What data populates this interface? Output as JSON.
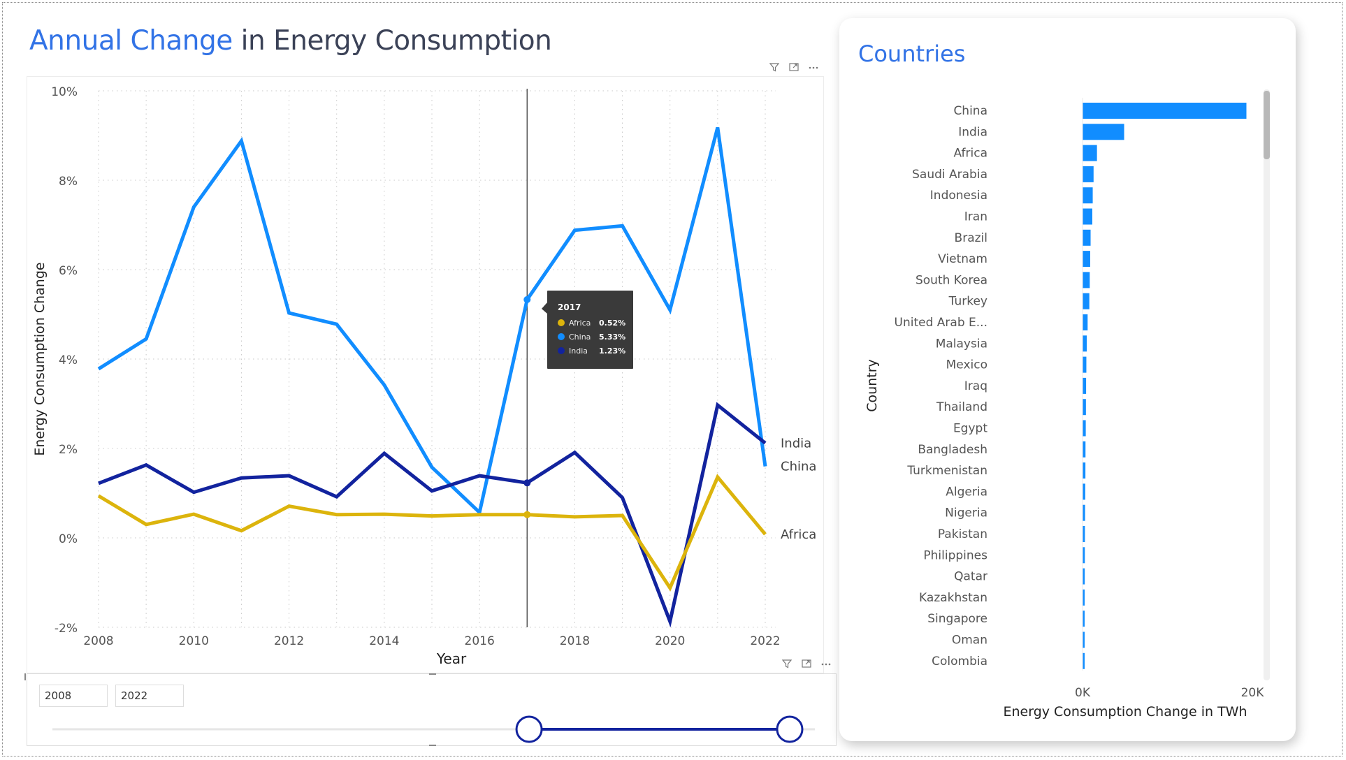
{
  "title": {
    "highlight": "Annual Change",
    "rest": " in Energy Consumption"
  },
  "colors": {
    "accent": "#3273e6",
    "africa": "#dcb40c",
    "china": "#118dff",
    "india": "#12239e",
    "bar": "#118dff",
    "slider": "#12239e"
  },
  "line_panel_icons": [
    "filter-icon",
    "focus-mode-icon",
    "more-options-icon"
  ],
  "slicer_icons": [
    "filter-icon",
    "focus-mode-icon",
    "more-options-icon"
  ],
  "tooltip": {
    "year": "2017",
    "rows": [
      {
        "label": "Africa",
        "value": "0.52%"
      },
      {
        "label": "China",
        "value": "5.33%"
      },
      {
        "label": "India",
        "value": "1.23%"
      }
    ]
  },
  "slicer": {
    "start": "2008",
    "end": "2022",
    "range_start_fraction": 0.66,
    "range_end_fraction": 1.0
  },
  "card": {
    "title": "Countries"
  },
  "chart_data": [
    {
      "type": "line",
      "xlabel": "Year",
      "ylabel": "Energy Consumption Change",
      "x": [
        2008,
        2009,
        2010,
        2011,
        2012,
        2013,
        2014,
        2015,
        2016,
        2017,
        2018,
        2019,
        2020,
        2021,
        2022
      ],
      "xticks": [
        "2008",
        "2010",
        "2012",
        "2014",
        "2016",
        "2018",
        "2020",
        "2022"
      ],
      "yticks": [
        "10%",
        "8%",
        "6%",
        "4%",
        "2%",
        "0%",
        "-2%"
      ],
      "ylim": [
        -2,
        10
      ],
      "grid": true,
      "hover_year": 2017,
      "series": [
        {
          "name": "China",
          "values": [
            3.78,
            4.45,
            7.4,
            8.88,
            5.03,
            4.78,
            3.42,
            1.58,
            0.57,
            5.33,
            6.88,
            6.98,
            5.1,
            9.18,
            1.6
          ]
        },
        {
          "name": "India",
          "values": [
            1.22,
            1.63,
            1.02,
            1.34,
            1.39,
            0.92,
            1.89,
            1.05,
            1.39,
            1.23,
            1.91,
            0.9,
            -1.87,
            2.97,
            2.12
          ]
        },
        {
          "name": "Africa",
          "values": [
            0.94,
            0.3,
            0.53,
            0.16,
            0.71,
            0.52,
            0.53,
            0.49,
            0.52,
            0.52,
            0.47,
            0.5,
            -1.12,
            1.36,
            0.08
          ]
        }
      ]
    },
    {
      "type": "bar",
      "orientation": "horizontal",
      "xlabel": "Energy Consumption Change in TWh",
      "ylabel": "Country",
      "xticks": [
        "0K",
        "20K"
      ],
      "xlim": [
        0,
        20000
      ],
      "categories": [
        "China",
        "India",
        "Africa",
        "Saudi Arabia",
        "Indonesia",
        "Iran",
        "Brazil",
        "Vietnam",
        "South Korea",
        "Turkey",
        "United Arab E...",
        "Malaysia",
        "Mexico",
        "Iraq",
        "Thailand",
        "Egypt",
        "Bangladesh",
        "Turkmenistan",
        "Algeria",
        "Nigeria",
        "Pakistan",
        "Philippines",
        "Qatar",
        "Kazakhstan",
        "Singapore",
        "Oman",
        "Colombia"
      ],
      "values": [
        19300,
        4900,
        1700,
        1300,
        1200,
        1150,
        950,
        900,
        850,
        800,
        600,
        500,
        450,
        420,
        400,
        380,
        350,
        340,
        320,
        300,
        280,
        270,
        260,
        250,
        240,
        230,
        220
      ]
    }
  ]
}
